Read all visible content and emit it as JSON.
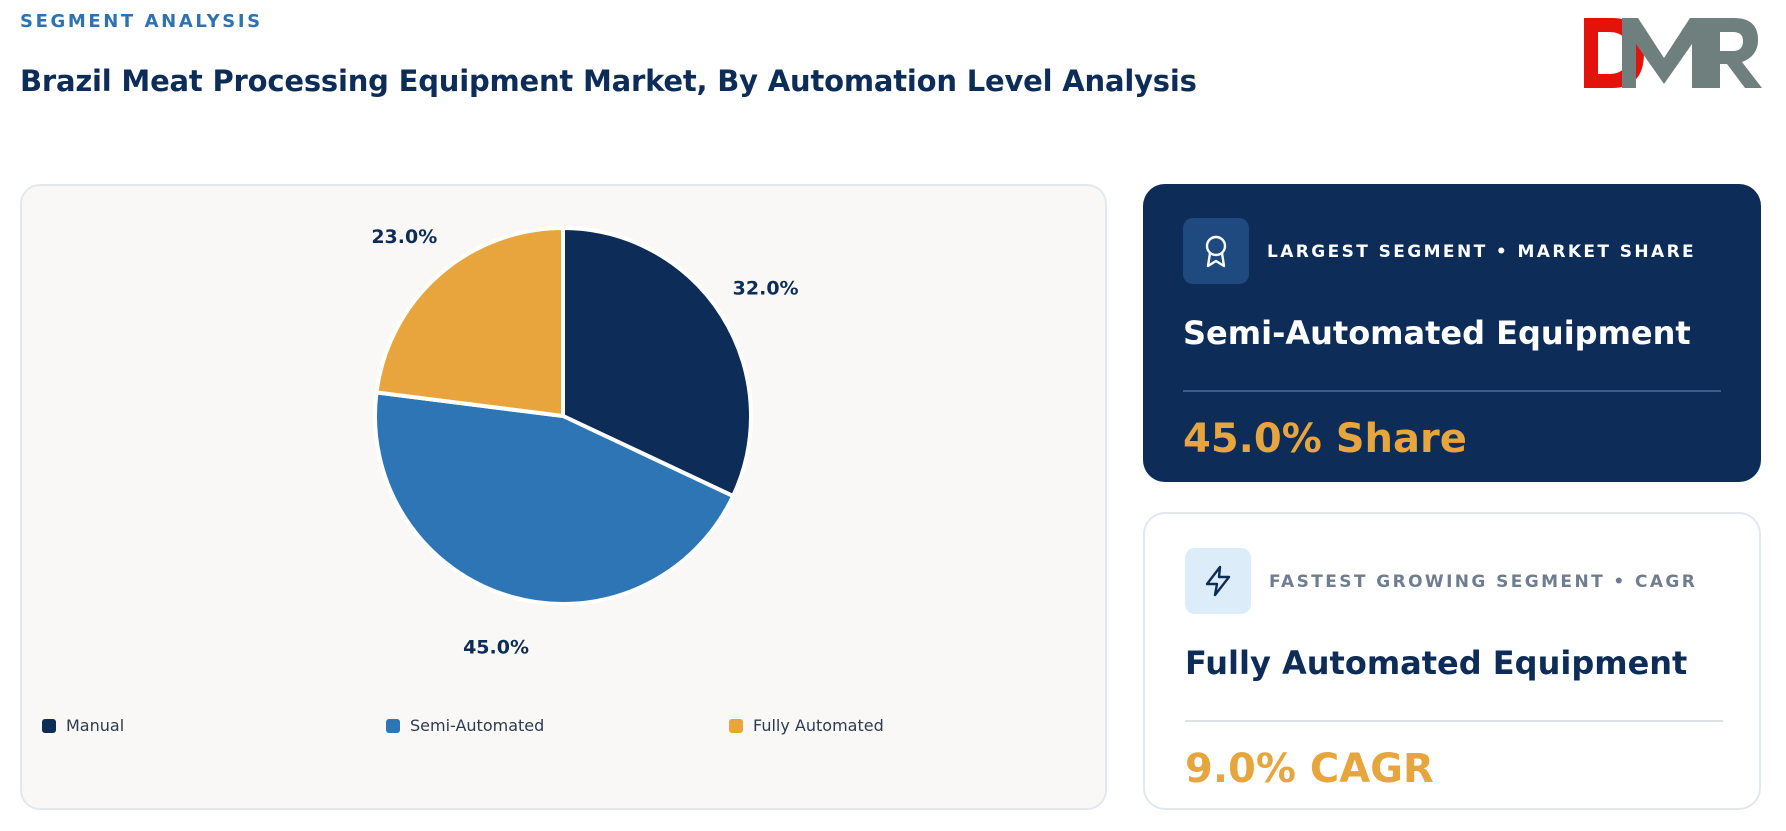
{
  "header": {
    "eyebrow": "SEGMENT ANALYSIS",
    "title": "Brazil Meat Processing Equipment Market, By Automation Level Analysis"
  },
  "logo": {
    "text": "DMR",
    "colors": {
      "d": "#e3120b",
      "m": "#6f7f7d",
      "r": "#6f7f7d"
    }
  },
  "chart_data": {
    "type": "pie",
    "categories": [
      "Manual",
      "Semi-Automated",
      "Fully Automated"
    ],
    "values": [
      32.0,
      45.0,
      23.0
    ],
    "labels": [
      "32.0%",
      "45.0%",
      "23.0%"
    ],
    "colors": [
      "#0d2c57",
      "#2e75b6",
      "#e8a53d"
    ],
    "legend_position": "bottom"
  },
  "cards": [
    {
      "icon": "award-icon",
      "label": "LARGEST SEGMENT • MARKET SHARE",
      "name": "Semi-Automated Equipment",
      "value": "45.0% Share"
    },
    {
      "icon": "lightning-icon",
      "label": "FASTEST GROWING SEGMENT • CAGR",
      "name": "Fully Automated Equipment",
      "value": "9.0% CAGR"
    }
  ]
}
